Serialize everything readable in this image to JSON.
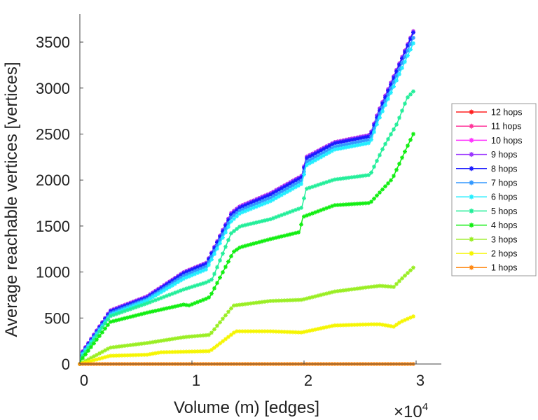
{
  "chart_data": {
    "type": "line",
    "title": "",
    "xlabel": "Volume (m) [edges]",
    "ylabel": "Average reachable vertices [vertices]",
    "x_exponent_label": "×10",
    "x_exponent_power": "4",
    "xlim": [
      0,
      31000
    ],
    "ylim": [
      0,
      3800
    ],
    "xticks": [
      0,
      10000,
      20000,
      30000
    ],
    "xtick_labels": [
      "0",
      "1",
      "2",
      "3"
    ],
    "yticks": [
      0,
      500,
      1000,
      1500,
      2000,
      2500,
      3000,
      3500
    ],
    "ytick_labels": [
      "0",
      "500",
      "1000",
      "1500",
      "2000",
      "2500",
      "3000",
      "3500"
    ],
    "grid": false,
    "legend_position": "right",
    "marker": "asterisk",
    "series": [
      {
        "name": "12 hops",
        "color": "#ff2020",
        "x": [
          0,
          100,
          2700,
          6000,
          9300,
          11300,
          13500,
          14300,
          17000,
          19800,
          20200,
          22700,
          25900,
          26600,
          29800
        ],
        "values": [
          0,
          110,
          580,
          735,
          1000,
          1100,
          1640,
          1715,
          1855,
          2045,
          2250,
          2410,
          2490,
          2735,
          3630
        ]
      },
      {
        "name": "11 hops",
        "color": "#ff3399",
        "x": [
          0,
          100,
          2700,
          6000,
          9300,
          11300,
          13500,
          14300,
          17000,
          19800,
          20200,
          22700,
          25900,
          26600,
          29800
        ],
        "values": [
          0,
          110,
          580,
          735,
          1000,
          1100,
          1640,
          1715,
          1855,
          2045,
          2250,
          2410,
          2490,
          2735,
          3630
        ]
      },
      {
        "name": "10 hops",
        "color": "#ff33ff",
        "x": [
          0,
          100,
          2700,
          6000,
          9300,
          11300,
          13500,
          14300,
          17000,
          19800,
          20200,
          22700,
          25900,
          26600,
          29800
        ],
        "values": [
          0,
          110,
          580,
          735,
          1000,
          1100,
          1640,
          1715,
          1855,
          2045,
          2250,
          2410,
          2490,
          2735,
          3630
        ]
      },
      {
        "name": "9 hops",
        "color": "#9933ff",
        "x": [
          0,
          100,
          2700,
          6000,
          9300,
          11300,
          13500,
          14300,
          17000,
          19800,
          20200,
          22700,
          25900,
          26600,
          29800
        ],
        "values": [
          0,
          110,
          580,
          735,
          1000,
          1100,
          1640,
          1715,
          1855,
          2045,
          2250,
          2410,
          2490,
          2735,
          3630
        ]
      },
      {
        "name": "8 hops",
        "color": "#1a1aff",
        "x": [
          0,
          100,
          2700,
          6000,
          9300,
          11300,
          13500,
          14300,
          17000,
          19800,
          20200,
          22700,
          25900,
          26600,
          29800
        ],
        "values": [
          0,
          100,
          571,
          723,
          990,
          1091,
          1624,
          1701,
          1840,
          2030,
          2234,
          2398,
          2475,
          2716,
          3617
        ]
      },
      {
        "name": "7 hops",
        "color": "#3399ff",
        "x": [
          0,
          100,
          2700,
          6000,
          9300,
          11300,
          13500,
          14300,
          17000,
          19800,
          20200,
          22700,
          25900,
          26600,
          29800
        ],
        "values": [
          0,
          90,
          550,
          705,
          960,
          1060,
          1590,
          1670,
          1805,
          1995,
          2195,
          2360,
          2440,
          2680,
          3560
        ]
      },
      {
        "name": "6 hops",
        "color": "#22eeff",
        "x": [
          0,
          100,
          2700,
          6000,
          9300,
          11300,
          13500,
          14300,
          17000,
          19800,
          20200,
          22700,
          25900,
          26600,
          29800
        ],
        "values": [
          0,
          80,
          530,
          690,
          930,
          1030,
          1550,
          1640,
          1770,
          1960,
          2160,
          2330,
          2405,
          2640,
          3500
        ]
      },
      {
        "name": "5 hops",
        "color": "#22ee99",
        "x": [
          0,
          100,
          2700,
          6000,
          9300,
          11300,
          11800,
          13500,
          14300,
          17000,
          19800,
          20200,
          22700,
          25900,
          27100,
          28300,
          29200,
          29800
        ],
        "values": [
          0,
          60,
          520,
          660,
          812,
          888,
          920,
          1421,
          1497,
          1574,
          1700,
          1904,
          2005,
          2056,
          2360,
          2614,
          2893,
          2970
        ]
      },
      {
        "name": "4 hops",
        "color": "#11ee11",
        "x": [
          0,
          100,
          2700,
          6000,
          9300,
          9700,
          11300,
          11600,
          13700,
          14300,
          17000,
          19600,
          19900,
          22700,
          25900,
          27900,
          29100,
          29800
        ],
        "values": [
          0,
          40,
          457,
          558,
          647,
          635,
          711,
          730,
          1218,
          1269,
          1358,
          1434,
          1599,
          1726,
          1751,
          2018,
          2335,
          2513
        ]
      },
      {
        "name": "3 hops",
        "color": "#99ee22",
        "x": [
          0,
          2700,
          6000,
          9300,
          11600,
          13700,
          17000,
          19800,
          22700,
          25900,
          26800,
          28000,
          28600,
          29800
        ],
        "values": [
          0,
          178,
          228,
          292,
          317,
          635,
          685,
          698,
          787,
          838,
          850,
          838,
          914,
          1053
        ]
      },
      {
        "name": "2 hops",
        "color": "#f5f500",
        "x": [
          0,
          2700,
          6000,
          7200,
          11600,
          13900,
          17000,
          19800,
          22700,
          25900,
          26800,
          28000,
          28600,
          29800
        ],
        "values": [
          0,
          89,
          101,
          127,
          140,
          355,
          355,
          343,
          419,
          431,
          431,
          406,
          457,
          520
        ]
      },
      {
        "name": "1 hops",
        "color": "#ff8811",
        "x": [
          0,
          29800
        ],
        "values": [
          0,
          0
        ]
      }
    ]
  }
}
